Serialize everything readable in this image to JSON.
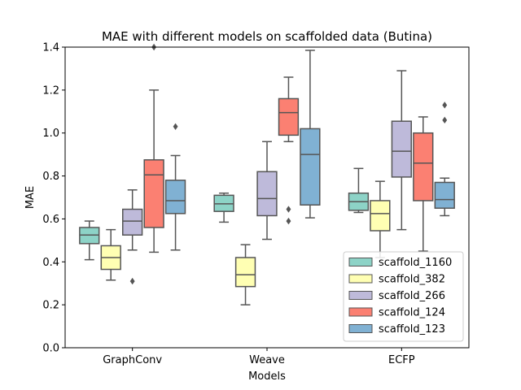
{
  "chart_data": {
    "type": "boxplot",
    "title": "MAE with different models on scaffolded data (Butina)",
    "xlabel": "Models",
    "ylabel": "MAE",
    "ylim": [
      0,
      1.4
    ],
    "yticks": [
      0.0,
      0.2,
      0.4,
      0.6,
      0.8,
      1.0,
      1.2,
      1.4
    ],
    "ytick_labels": [
      "0.0",
      "0.2",
      "0.4",
      "0.6",
      "0.8",
      "1.0",
      "1.2",
      "1.4"
    ],
    "categories": [
      "GraphConv",
      "Weave",
      "ECFP"
    ],
    "legend_position": "lower-right",
    "series": [
      {
        "name": "scaffold_1160",
        "color": "#8dd3c7",
        "boxes": [
          {
            "whislo": 0.41,
            "q1": 0.485,
            "med": 0.525,
            "q3": 0.56,
            "whishi": 0.59,
            "fliers": []
          },
          {
            "whislo": 0.585,
            "q1": 0.635,
            "med": 0.67,
            "q3": 0.71,
            "whishi": 0.72,
            "fliers": []
          },
          {
            "whislo": 0.63,
            "q1": 0.64,
            "med": 0.68,
            "q3": 0.72,
            "whishi": 0.835,
            "fliers": []
          }
        ]
      },
      {
        "name": "scaffold_382",
        "color": "#ffffb3",
        "boxes": [
          {
            "whislo": 0.315,
            "q1": 0.365,
            "med": 0.42,
            "q3": 0.475,
            "whishi": 0.55,
            "fliers": []
          },
          {
            "whislo": 0.2,
            "q1": 0.285,
            "med": 0.34,
            "q3": 0.42,
            "whishi": 0.48,
            "fliers": []
          },
          {
            "whislo": 0.42,
            "q1": 0.545,
            "med": 0.625,
            "q3": 0.685,
            "whishi": 0.775,
            "fliers": []
          }
        ]
      },
      {
        "name": "scaffold_266",
        "color": "#bebada",
        "boxes": [
          {
            "whislo": 0.455,
            "q1": 0.525,
            "med": 0.59,
            "q3": 0.645,
            "whishi": 0.735,
            "fliers": [
              0.31
            ]
          },
          {
            "whislo": 0.505,
            "q1": 0.615,
            "med": 0.695,
            "q3": 0.82,
            "whishi": 0.96,
            "fliers": []
          },
          {
            "whislo": 0.55,
            "q1": 0.795,
            "med": 0.915,
            "q3": 1.055,
            "whishi": 1.29,
            "fliers": []
          }
        ]
      },
      {
        "name": "scaffold_124",
        "color": "#fb8072",
        "boxes": [
          {
            "whislo": 0.445,
            "q1": 0.56,
            "med": 0.805,
            "q3": 0.875,
            "whishi": 1.2,
            "fliers": [
              1.4
            ]
          },
          {
            "whislo": 0.96,
            "q1": 0.99,
            "med": 1.095,
            "q3": 1.16,
            "whishi": 1.26,
            "fliers": [
              0.645,
              0.59
            ]
          },
          {
            "whislo": 0.45,
            "q1": 0.685,
            "med": 0.86,
            "q3": 1.0,
            "whishi": 1.075,
            "fliers": []
          }
        ]
      },
      {
        "name": "scaffold_123",
        "color": "#80b1d3",
        "boxes": [
          {
            "whislo": 0.455,
            "q1": 0.625,
            "med": 0.685,
            "q3": 0.78,
            "whishi": 0.895,
            "fliers": [
              1.03
            ]
          },
          {
            "whislo": 0.605,
            "q1": 0.665,
            "med": 0.9,
            "q3": 1.02,
            "whishi": 1.385,
            "fliers": []
          },
          {
            "whislo": 0.615,
            "q1": 0.65,
            "med": 0.69,
            "q3": 0.77,
            "whishi": 0.79,
            "fliers": [
              1.13,
              1.06
            ]
          }
        ]
      }
    ]
  }
}
